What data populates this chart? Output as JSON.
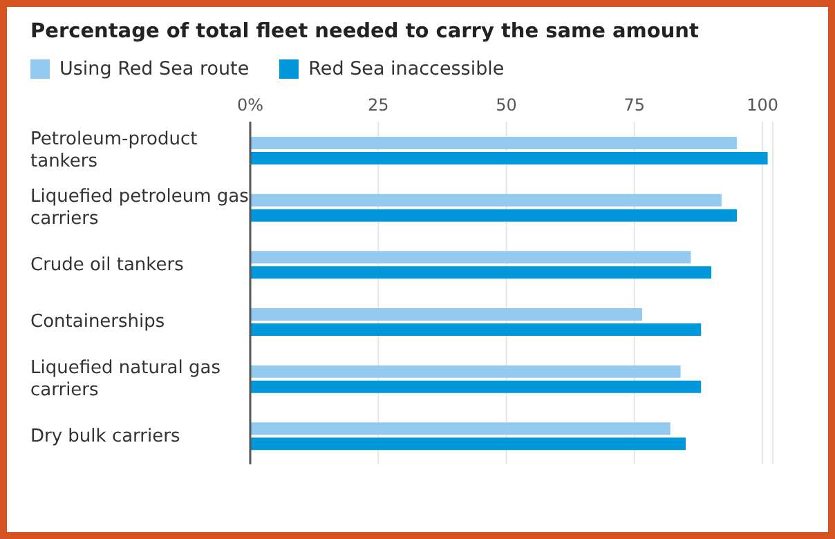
{
  "chart_data": {
    "type": "bar",
    "orientation": "horizontal",
    "title": "Percentage of total fleet needed to carry the same amount",
    "categories": [
      "Petroleum-product tankers",
      "Liquefied petroleum gas carriers",
      "Crude oil tankers",
      "Containerships",
      "Liquefied natural gas carriers",
      "Dry bulk carriers"
    ],
    "series": [
      {
        "name": "Using Red Sea route",
        "color": "#94caef",
        "values": [
          95,
          92,
          86,
          76.5,
          84,
          82
        ]
      },
      {
        "name": "Red Sea inaccessible",
        "color": "#0098db",
        "values": [
          101,
          95,
          90,
          88,
          88,
          85
        ]
      }
    ],
    "xlim": [
      0,
      102
    ],
    "xticks": [
      {
        "value": 0,
        "label": "0%"
      },
      25,
      50,
      75,
      100
    ],
    "grid": "x",
    "legend": "top left"
  }
}
